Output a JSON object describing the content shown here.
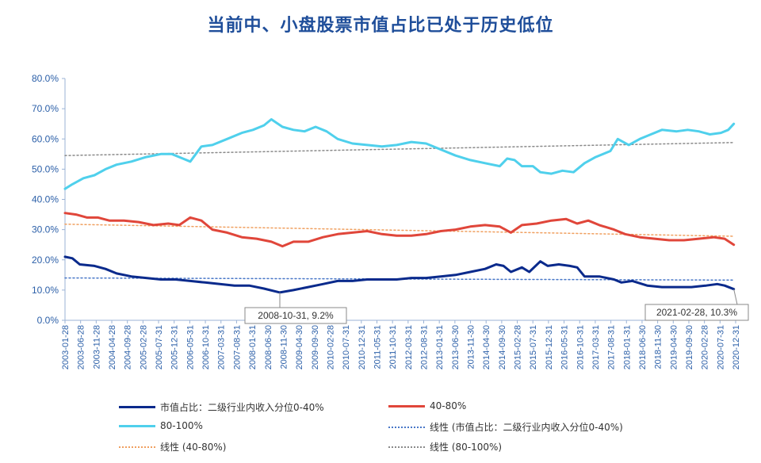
{
  "title": "当前中、小盘股票市值占比已处于历史低位",
  "legend": {
    "small": "市值占比：二级行业内收入分位0-40%",
    "mid": "40-80%",
    "large": "80-100%",
    "trend_small": "线性 (市值占比：二级行业内收入分位0-40%)",
    "trend_mid": "线性 (40-80%)",
    "trend_large": "线性 (80-100%)"
  },
  "annotations": {
    "low_point": "2008-10-31, 9.2%",
    "latest": "2021-02-28, 10.3%"
  },
  "colors": {
    "small": "#0a2a8c",
    "mid": "#e0463a",
    "large": "#4fd0ec",
    "trend_small": "#4a78c8",
    "trend_mid": "#f0a060",
    "trend_large": "#8a8a8a",
    "axis_text": "#2b5fa8",
    "title": "#1f4e9a"
  },
  "chart_data": {
    "type": "line",
    "yaxis": {
      "min": 0,
      "max": 80,
      "ticks": [
        "0.0%",
        "10.0%",
        "20.0%",
        "30.0%",
        "40.0%",
        "50.0%",
        "60.0%",
        "70.0%",
        "80.0%"
      ]
    },
    "x_tick_labels": [
      "2003-01-28",
      "2003-06-28",
      "2003-11-28",
      "2004-04-28",
      "2004-09-28",
      "2005-02-28",
      "2005-07-31",
      "2005-12-31",
      "2006-05-31",
      "2006-10-31",
      "2007-03-31",
      "2007-08-31",
      "2008-01-31",
      "2008-06-30",
      "2008-11-30",
      "2009-04-30",
      "2009-09-30",
      "2010-02-28",
      "2010-07-31",
      "2010-12-31",
      "2011-05-31",
      "2011-10-31",
      "2012-03-31",
      "2012-08-31",
      "2013-01-31",
      "2013-06-30",
      "2013-11-30",
      "2014-04-30",
      "2014-09-30",
      "2015-02-28",
      "2015-07-31",
      "2015-12-31",
      "2016-05-31",
      "2016-10-31",
      "2017-03-31",
      "2017-08-31",
      "2018-01-31",
      "2018-06-30",
      "2018-11-30",
      "2019-04-30",
      "2019-09-30",
      "2020-02-28",
      "2020-07-31",
      "2020-12-31"
    ],
    "x_range": [
      2003.0,
      2021.2
    ],
    "series": [
      {
        "name": "市值占比：二级行业内收入分位0-40%",
        "key": "small",
        "points": [
          [
            2003.0,
            21
          ],
          [
            2003.2,
            20.5
          ],
          [
            2003.4,
            18.5
          ],
          [
            2003.8,
            18
          ],
          [
            2004.1,
            17
          ],
          [
            2004.4,
            15.5
          ],
          [
            2004.8,
            14.5
          ],
          [
            2005.2,
            14
          ],
          [
            2005.6,
            13.5
          ],
          [
            2006.0,
            13.5
          ],
          [
            2006.4,
            13
          ],
          [
            2006.8,
            12.5
          ],
          [
            2007.2,
            12
          ],
          [
            2007.6,
            11.5
          ],
          [
            2008.0,
            11.5
          ],
          [
            2008.4,
            10.5
          ],
          [
            2008.83,
            9.2
          ],
          [
            2009.2,
            10
          ],
          [
            2009.6,
            11
          ],
          [
            2010.0,
            12
          ],
          [
            2010.4,
            13
          ],
          [
            2010.8,
            13
          ],
          [
            2011.2,
            13.5
          ],
          [
            2011.6,
            13.5
          ],
          [
            2012.0,
            13.5
          ],
          [
            2012.4,
            14
          ],
          [
            2012.8,
            14
          ],
          [
            2013.2,
            14.5
          ],
          [
            2013.6,
            15
          ],
          [
            2014.0,
            16
          ],
          [
            2014.4,
            17
          ],
          [
            2014.7,
            18.5
          ],
          [
            2014.9,
            18
          ],
          [
            2015.1,
            16
          ],
          [
            2015.4,
            17.5
          ],
          [
            2015.6,
            16
          ],
          [
            2015.9,
            19.5
          ],
          [
            2016.1,
            18
          ],
          [
            2016.4,
            18.5
          ],
          [
            2016.7,
            18
          ],
          [
            2016.9,
            17.5
          ],
          [
            2017.1,
            14.5
          ],
          [
            2017.5,
            14.5
          ],
          [
            2017.9,
            13.5
          ],
          [
            2018.1,
            12.5
          ],
          [
            2018.4,
            13
          ],
          [
            2018.8,
            11.5
          ],
          [
            2019.2,
            11
          ],
          [
            2019.6,
            11
          ],
          [
            2020.0,
            11
          ],
          [
            2020.4,
            11.5
          ],
          [
            2020.7,
            12
          ],
          [
            2020.9,
            11.5
          ],
          [
            2021.15,
            10.3
          ]
        ]
      },
      {
        "name": "40-80%",
        "key": "mid",
        "points": [
          [
            2003.0,
            35.5
          ],
          [
            2003.3,
            35
          ],
          [
            2003.6,
            34
          ],
          [
            2003.9,
            34
          ],
          [
            2004.2,
            33
          ],
          [
            2004.6,
            33
          ],
          [
            2005.0,
            32.5
          ],
          [
            2005.4,
            31.5
          ],
          [
            2005.8,
            32
          ],
          [
            2006.1,
            31.5
          ],
          [
            2006.4,
            34
          ],
          [
            2006.7,
            33
          ],
          [
            2007.0,
            30
          ],
          [
            2007.4,
            29
          ],
          [
            2007.8,
            27.5
          ],
          [
            2008.2,
            27
          ],
          [
            2008.6,
            26
          ],
          [
            2008.9,
            24.5
          ],
          [
            2009.2,
            26
          ],
          [
            2009.6,
            26
          ],
          [
            2010.0,
            27.5
          ],
          [
            2010.4,
            28.5
          ],
          [
            2010.8,
            29
          ],
          [
            2011.2,
            29.5
          ],
          [
            2011.6,
            28.5
          ],
          [
            2012.0,
            28
          ],
          [
            2012.4,
            28
          ],
          [
            2012.8,
            28.5
          ],
          [
            2013.2,
            29.5
          ],
          [
            2013.6,
            30
          ],
          [
            2014.0,
            31
          ],
          [
            2014.4,
            31.5
          ],
          [
            2014.8,
            31
          ],
          [
            2015.1,
            29
          ],
          [
            2015.4,
            31.5
          ],
          [
            2015.8,
            32
          ],
          [
            2016.2,
            33
          ],
          [
            2016.6,
            33.5
          ],
          [
            2016.9,
            32
          ],
          [
            2017.2,
            33
          ],
          [
            2017.5,
            31.5
          ],
          [
            2017.9,
            30
          ],
          [
            2018.2,
            28.5
          ],
          [
            2018.6,
            27.5
          ],
          [
            2019.0,
            27
          ],
          [
            2019.4,
            26.5
          ],
          [
            2019.8,
            26.5
          ],
          [
            2020.2,
            27
          ],
          [
            2020.6,
            27.5
          ],
          [
            2020.9,
            27
          ],
          [
            2021.15,
            25
          ]
        ]
      },
      {
        "name": "80-100%",
        "key": "large",
        "points": [
          [
            2003.0,
            43.5
          ],
          [
            2003.2,
            45
          ],
          [
            2003.5,
            47
          ],
          [
            2003.8,
            48
          ],
          [
            2004.1,
            50
          ],
          [
            2004.4,
            51.5
          ],
          [
            2004.8,
            52.5
          ],
          [
            2005.2,
            54
          ],
          [
            2005.6,
            55
          ],
          [
            2005.9,
            55
          ],
          [
            2006.2,
            53.5
          ],
          [
            2006.4,
            52.5
          ],
          [
            2006.7,
            57.5
          ],
          [
            2007.0,
            58
          ],
          [
            2007.4,
            60
          ],
          [
            2007.8,
            62
          ],
          [
            2008.1,
            63
          ],
          [
            2008.4,
            64.5
          ],
          [
            2008.6,
            66.5
          ],
          [
            2008.9,
            64
          ],
          [
            2009.2,
            63
          ],
          [
            2009.5,
            62.5
          ],
          [
            2009.8,
            64
          ],
          [
            2010.1,
            62.5
          ],
          [
            2010.4,
            60
          ],
          [
            2010.8,
            58.5
          ],
          [
            2011.2,
            58
          ],
          [
            2011.6,
            57.5
          ],
          [
            2012.0,
            58
          ],
          [
            2012.4,
            59
          ],
          [
            2012.8,
            58.5
          ],
          [
            2013.2,
            56.5
          ],
          [
            2013.6,
            54.5
          ],
          [
            2014.0,
            53
          ],
          [
            2014.4,
            52
          ],
          [
            2014.8,
            51
          ],
          [
            2015.0,
            53.5
          ],
          [
            2015.2,
            53
          ],
          [
            2015.4,
            51
          ],
          [
            2015.7,
            51
          ],
          [
            2015.9,
            49
          ],
          [
            2016.2,
            48.5
          ],
          [
            2016.5,
            49.5
          ],
          [
            2016.8,
            49
          ],
          [
            2017.1,
            52
          ],
          [
            2017.4,
            54
          ],
          [
            2017.8,
            56
          ],
          [
            2018.0,
            60
          ],
          [
            2018.3,
            58
          ],
          [
            2018.6,
            60
          ],
          [
            2018.9,
            61.5
          ],
          [
            2019.2,
            63
          ],
          [
            2019.6,
            62.5
          ],
          [
            2019.9,
            63
          ],
          [
            2020.2,
            62.5
          ],
          [
            2020.5,
            61.5
          ],
          [
            2020.8,
            62
          ],
          [
            2021.0,
            63
          ],
          [
            2021.15,
            65
          ]
        ]
      },
      {
        "name": "线性 (市值占比：二级行业内收入分位0-40%)",
        "key": "trend_small",
        "points": [
          [
            2003.0,
            14.0
          ],
          [
            2021.15,
            13.3
          ]
        ]
      },
      {
        "name": "线性 (40-80%)",
        "key": "trend_mid",
        "points": [
          [
            2003.0,
            31.8
          ],
          [
            2021.15,
            27.8
          ]
        ]
      },
      {
        "name": "线性 (80-100%)",
        "key": "trend_large",
        "points": [
          [
            2003.0,
            54.5
          ],
          [
            2021.15,
            58.8
          ]
        ]
      }
    ]
  }
}
